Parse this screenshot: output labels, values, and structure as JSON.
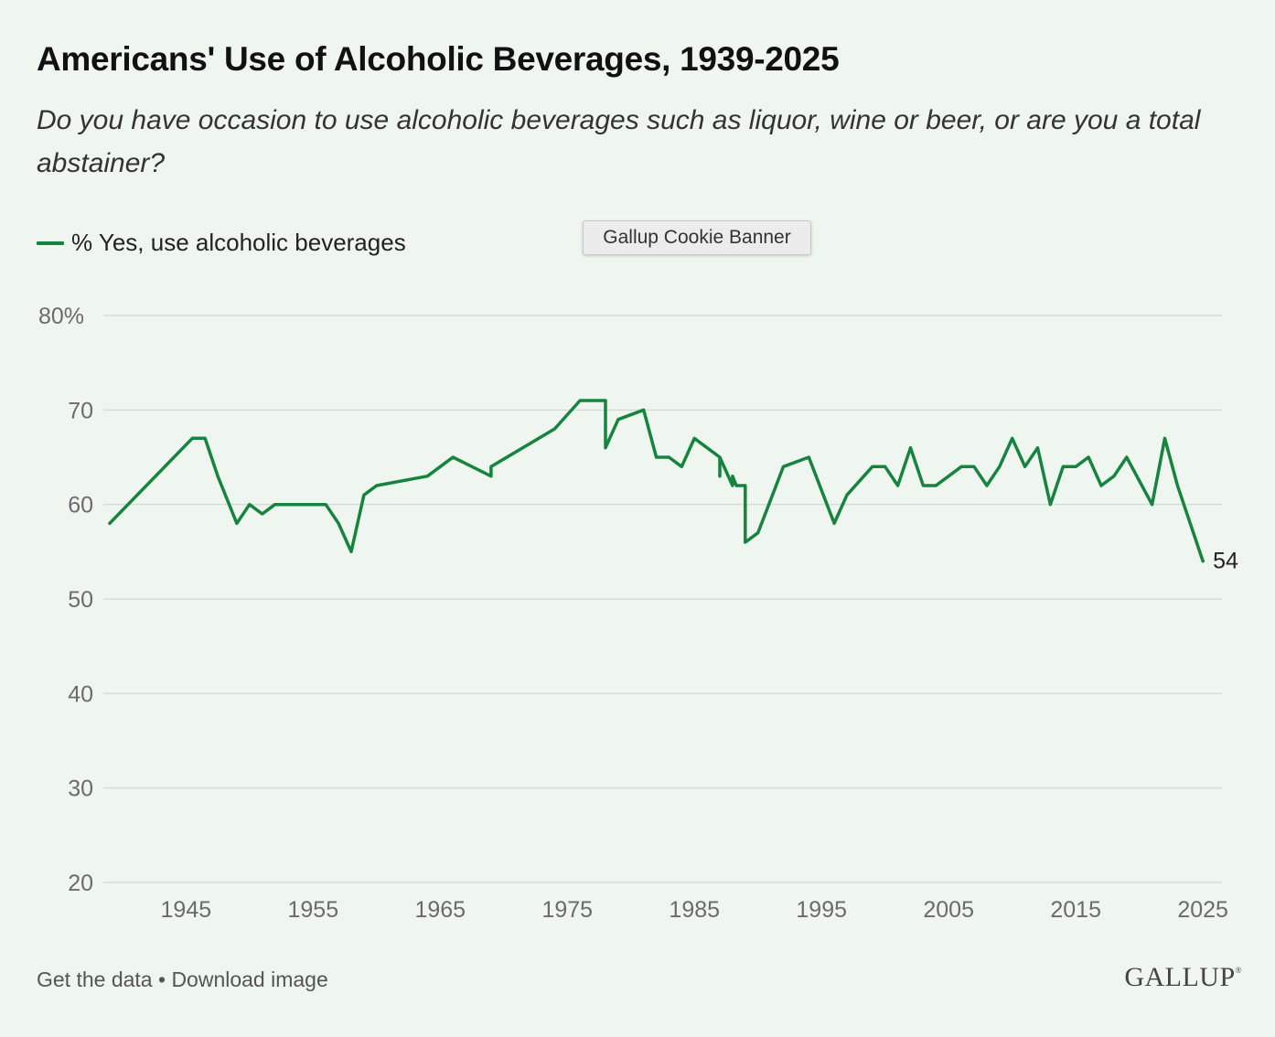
{
  "header": {
    "title": "Americans' Use of Alcoholic Beverages, 1939-2025",
    "subtitle": "Do you have occasion to use alcoholic beverages such as liquor, wine or beer, or are you a total abstainer?"
  },
  "legend": {
    "label": "% Yes, use alcoholic beverages"
  },
  "cookie_banner": {
    "label": "Gallup Cookie Banner"
  },
  "footer": {
    "get_data": "Get the data",
    "separator": "•",
    "download": "Download image",
    "logo": "GALLUP"
  },
  "colors": {
    "line": "#16843e",
    "grid": "#d6ddd6",
    "axis_text": "#6b6b6b",
    "background": "#eff6ef"
  },
  "chart_data": {
    "type": "line",
    "title": "Americans' Use of Alcoholic Beverages, 1939-2025",
    "xlabel": "",
    "ylabel": "",
    "xlim": [
      1938.5,
      2026.5
    ],
    "ylim": [
      20,
      80
    ],
    "y_ticks": [
      80,
      70,
      60,
      50,
      40,
      30,
      20
    ],
    "y_tick_labels": [
      "80%",
      "70",
      "60",
      "50",
      "40",
      "30",
      "20"
    ],
    "x_ticks": [
      1945,
      1955,
      1965,
      1975,
      1985,
      1995,
      2005,
      2015,
      2025
    ],
    "x_tick_labels": [
      "1945",
      "1955",
      "1965",
      "1975",
      "1985",
      "1995",
      "2005",
      "2015",
      "2025"
    ],
    "grid": true,
    "end_label": "54",
    "series": [
      {
        "name": "% Yes, use alcoholic beverages",
        "x": [
          1939,
          1945.5,
          1946.5,
          1947.5,
          1949,
          1950,
          1951,
          1952,
          1954,
          1956,
          1957,
          1958,
          1959,
          1960,
          1964,
          1966,
          1969,
          1969,
          1974,
          1976,
          1977,
          1978,
          1978,
          1979,
          1981,
          1982,
          1983,
          1984,
          1985,
          1987,
          1987,
          1987,
          1988,
          1988,
          1988.3,
          1989,
          1989,
          1990,
          1992,
          1994,
          1996,
          1997,
          1999,
          2000,
          2001,
          2002,
          2003,
          2004,
          2006,
          2007,
          2008,
          2009,
          2010,
          2011,
          2012,
          2013,
          2014,
          2015,
          2016,
          2017,
          2018,
          2019,
          2021,
          2022,
          2023,
          2025
        ],
        "values": [
          58,
          67,
          67,
          63,
          58,
          60,
          59,
          60,
          60,
          60,
          58,
          55,
          61,
          62,
          63,
          65,
          63,
          64,
          68,
          71,
          71,
          71,
          66,
          69,
          70,
          65,
          65,
          64,
          67,
          65,
          63,
          65,
          62,
          63,
          62,
          62,
          56,
          57,
          64,
          65,
          58,
          61,
          64,
          64,
          62,
          66,
          62,
          62,
          64,
          64,
          62,
          64,
          67,
          64,
          66,
          60,
          64,
          64,
          65,
          62,
          63,
          65,
          60,
          67,
          62,
          54
        ]
      }
    ]
  }
}
